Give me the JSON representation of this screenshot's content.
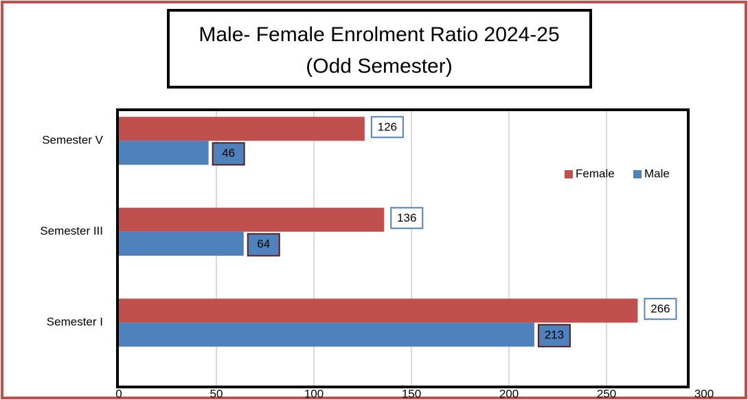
{
  "chart_data": {
    "type": "bar",
    "orientation": "horizontal",
    "title": "Male- Female Enrolment Ratio 2024-25",
    "subtitle": "(Odd Semester)",
    "categories": [
      "Semester I",
      "Semester III",
      "Semester V"
    ],
    "series": [
      {
        "name": "Female",
        "color": "#c0504d",
        "values": [
          266,
          136,
          126
        ]
      },
      {
        "name": "Male",
        "color": "#4f81bd",
        "values": [
          213,
          64,
          46
        ]
      }
    ],
    "xlim": [
      0,
      300
    ],
    "xticks": [
      0,
      50,
      100,
      150,
      200,
      250,
      300
    ],
    "grid": true,
    "legend": "right"
  }
}
